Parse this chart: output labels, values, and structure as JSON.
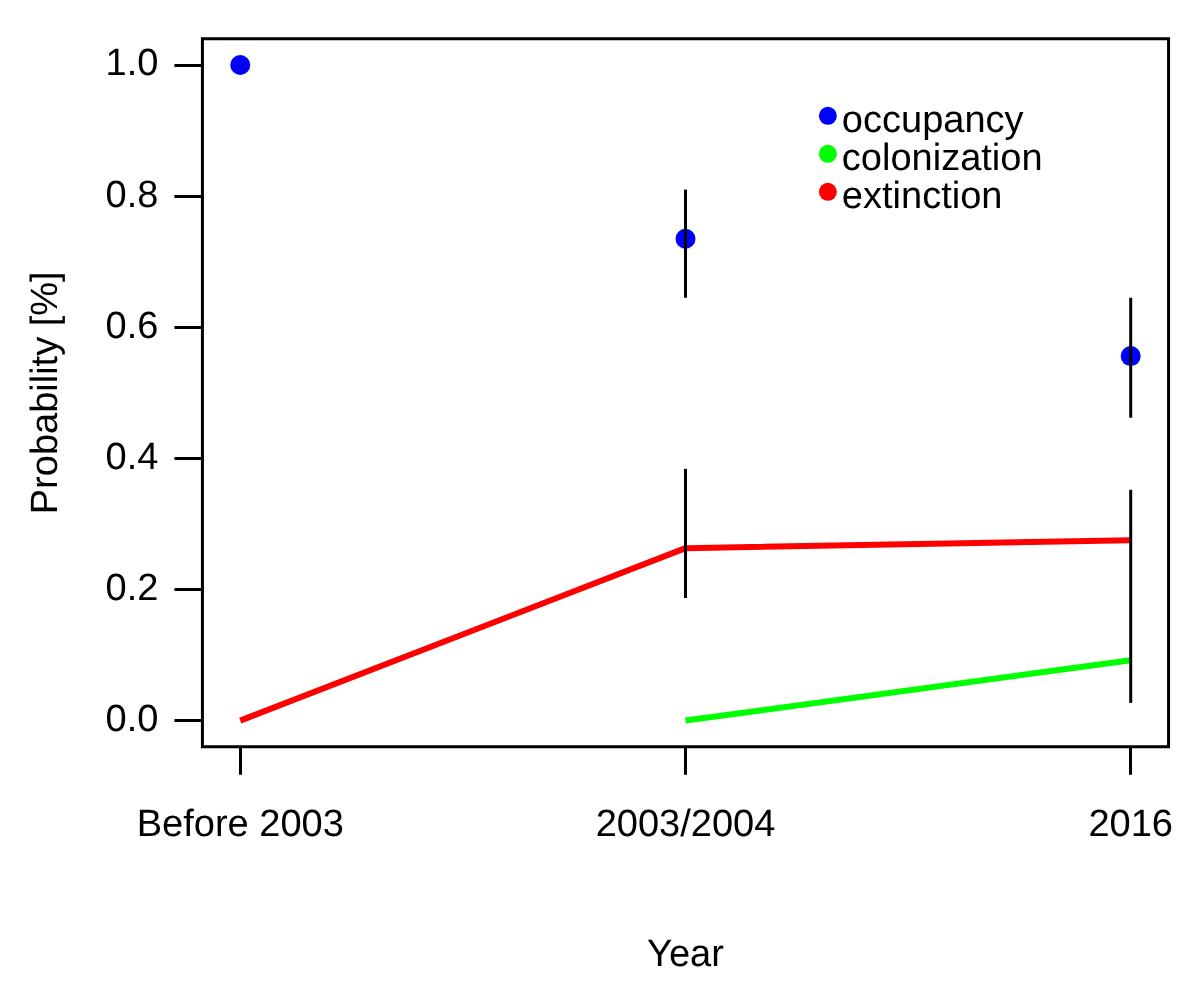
{
  "chart_data": {
    "type": "line",
    "xlabel": "Year",
    "ylabel": "Probability [%]",
    "categories": [
      "Before 2003",
      "2003/2004",
      "2016"
    ],
    "ylim": [
      -0.04,
      1.04
    ],
    "yticks": [
      {
        "value": 0,
        "label": "0.0"
      },
      {
        "value": 0.2,
        "label": "0.2"
      },
      {
        "value": 0.4,
        "label": "0.4"
      },
      {
        "value": 0.6,
        "label": "0.6"
      },
      {
        "value": 0.8,
        "label": "0.8"
      },
      {
        "value": 1,
        "label": "1.0"
      }
    ],
    "grid": false,
    "legend": "top right",
    "series": [
      {
        "name": "occupancy",
        "type": "scatter",
        "marker": "circle",
        "color": "#0000ff",
        "values": [
          1.0,
          0.735,
          0.556
        ],
        "errors": [
          null,
          [
            0.645,
            0.81
          ],
          [
            0.462,
            0.645
          ]
        ]
      },
      {
        "name": "colonization",
        "type": "line",
        "marker": "none",
        "color": "#00ff00",
        "values": [
          null,
          0.0,
          0.092
        ]
      },
      {
        "name": "extinction",
        "type": "line",
        "marker": "none",
        "color": "#ff0000",
        "values": [
          0.0,
          0.263,
          0.275
        ],
        "errors": [
          null,
          [
            0.187,
            0.384
          ],
          [
            0.027,
            0.352
          ]
        ]
      }
    ]
  }
}
